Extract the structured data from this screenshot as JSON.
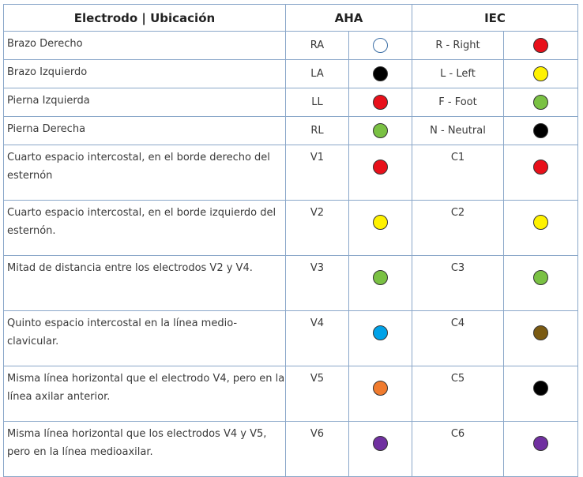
{
  "headers": {
    "col1": "Electrodo | Ubicación",
    "aha": "AHA",
    "iec": "IEC"
  },
  "rows": [
    {
      "location": "Brazo Derecho",
      "aha_code": "RA",
      "aha_color": "#ffffff",
      "iec_code": "R - Right",
      "iec_color": "#e8101a"
    },
    {
      "location": "Brazo Izquierdo",
      "aha_code": "LA",
      "aha_color": "#000000",
      "iec_code": "L - Left",
      "iec_color": "#fff200"
    },
    {
      "location": "Pierna Izquierda",
      "aha_code": "LL",
      "aha_color": "#e8101a",
      "iec_code": "F - Foot",
      "iec_color": "#7ac143"
    },
    {
      "location": "Pierna Derecha",
      "aha_code": "RL",
      "aha_color": "#7ac143",
      "iec_code": "N - Neutral",
      "iec_color": "#000000"
    },
    {
      "location": "Cuarto espacio intercostal, en el borde derecho del esternón",
      "aha_code": "V1",
      "aha_color": "#e8101a",
      "iec_code": "C1",
      "iec_color": "#e8101a"
    },
    {
      "location": "Cuarto espacio intercostal, en el borde izquierdo del esternón.",
      "aha_code": "V2",
      "aha_color": "#fff200",
      "iec_code": "C2",
      "iec_color": "#fff200"
    },
    {
      "location": "Mitad de distancia entre los electrodos V2 y V4.",
      "aha_code": "V3",
      "aha_color": "#7ac143",
      "iec_code": "C3",
      "iec_color": "#7ac143"
    },
    {
      "location": "Quinto espacio intercostal en la línea medio-clavicular.",
      "aha_code": "V4",
      "aha_color": "#00a2e8",
      "iec_code": "C4",
      "iec_color": "#7a5a12"
    },
    {
      "location": "Misma línea horizontal que el electrodo V4, pero en la línea axilar anterior.",
      "aha_code": "V5",
      "aha_color": "#f07b2e",
      "iec_code": "C5",
      "iec_color": "#000000"
    },
    {
      "location": "Misma línea horizontal que los electrodos V4 y V5, pero en la línea medioaxilar.",
      "aha_code": "V6",
      "aha_color": "#7030a0",
      "iec_code": "C6",
      "iec_color": "#7030a0"
    }
  ]
}
